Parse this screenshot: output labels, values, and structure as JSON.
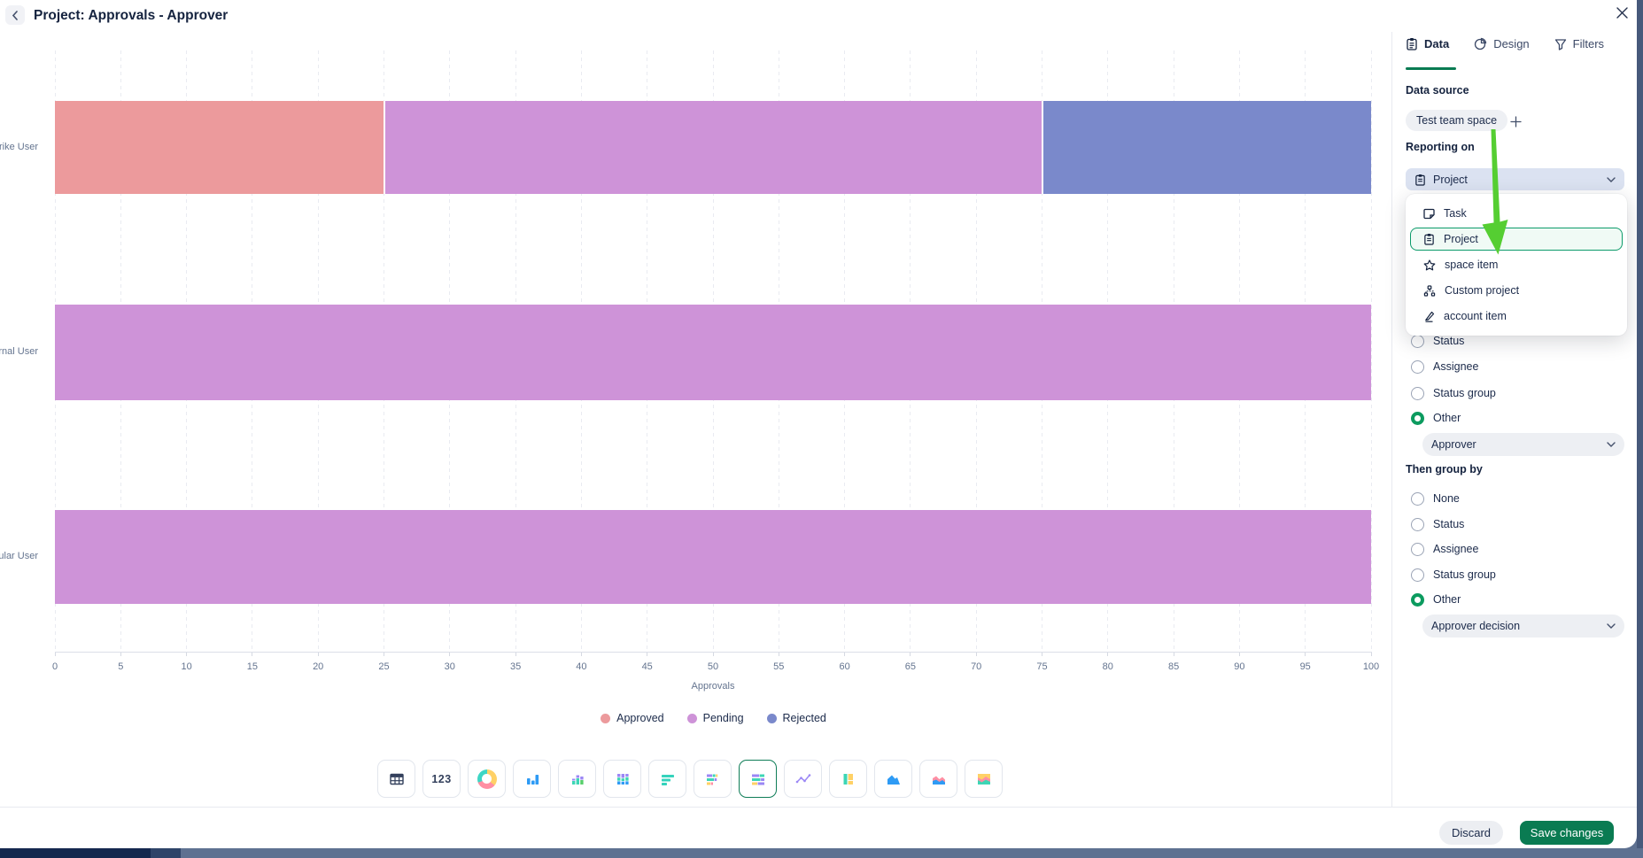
{
  "header": {
    "title": "Project: Approvals - Approver"
  },
  "chart_data": {
    "type": "bar",
    "orientation": "horizontal",
    "stacked": true,
    "categories": [
      "Wrike User",
      "ternal User",
      "egular User"
    ],
    "series": [
      {
        "name": "Approved",
        "color": "#EC9A9C",
        "values": [
          25,
          0,
          0
        ]
      },
      {
        "name": "Pending",
        "color": "#CE93D8",
        "values": [
          50,
          100,
          100
        ]
      },
      {
        "name": "Rejected",
        "color": "#7A89CB",
        "values": [
          25,
          0,
          0
        ]
      }
    ],
    "xlabel": "Approvals",
    "xlim": [
      0,
      100
    ],
    "xticks": [
      0,
      5,
      10,
      15,
      20,
      25,
      30,
      35,
      40,
      45,
      50,
      55,
      60,
      65,
      70,
      75,
      80,
      85,
      90,
      95,
      100
    ],
    "grid": "vertical-dashed",
    "legend_position": "bottom"
  },
  "toolbar": {
    "chart_types": [
      {
        "name": "table",
        "selected": false
      },
      {
        "name": "number-123",
        "selected": false
      },
      {
        "name": "donut",
        "selected": false
      },
      {
        "name": "column",
        "selected": false
      },
      {
        "name": "stacked-column",
        "selected": false
      },
      {
        "name": "stacked-column-100",
        "selected": false
      },
      {
        "name": "bar",
        "selected": false
      },
      {
        "name": "stacked-bar",
        "selected": false
      },
      {
        "name": "stacked-bar-100",
        "selected": true
      },
      {
        "name": "line",
        "selected": false
      },
      {
        "name": "column-100-blocks",
        "selected": false
      },
      {
        "name": "area",
        "selected": false
      },
      {
        "name": "stacked-area",
        "selected": false
      },
      {
        "name": "stacked-area-100",
        "selected": false
      }
    ],
    "number_label": "123"
  },
  "sidebar": {
    "tabs": [
      {
        "label": "Data",
        "active": true
      },
      {
        "label": "Design",
        "active": false
      },
      {
        "label": "Filters",
        "active": false
      }
    ],
    "data_source": {
      "heading": "Data source",
      "source_chip": "Test team space"
    },
    "reporting_on": {
      "heading": "Reporting on",
      "selected": "Project"
    },
    "reporting_dropdown": {
      "items": [
        {
          "label": "Task",
          "selected": false
        },
        {
          "label": "Project",
          "selected": true
        },
        {
          "label": "space item",
          "selected": false
        },
        {
          "label": "Custom project",
          "selected": false
        },
        {
          "label": "account item",
          "selected": false
        }
      ]
    },
    "group_by": {
      "visible_options": [
        {
          "label": "Status",
          "selected": false
        },
        {
          "label": "Assignee",
          "selected": false
        },
        {
          "label": "Status group",
          "selected": false
        },
        {
          "label": "Other",
          "selected": true
        }
      ],
      "other_value": "Approver"
    },
    "then_group_by": {
      "heading": "Then group by",
      "options": [
        {
          "label": "None",
          "selected": false
        },
        {
          "label": "Status",
          "selected": false
        },
        {
          "label": "Assignee",
          "selected": false
        },
        {
          "label": "Status group",
          "selected": false
        },
        {
          "label": "Other",
          "selected": true
        }
      ],
      "other_value": "Approver decision"
    }
  },
  "footer": {
    "discard_label": "Discard",
    "save_label": "Save changes"
  },
  "colors": {
    "accent_green": "#0A7B52",
    "dropdown_highlight": "#0C9B6A",
    "arrow_green": "#55CE32",
    "approved": "#EC9A9C",
    "pending": "#CE93D8",
    "rejected": "#7A89CB"
  }
}
